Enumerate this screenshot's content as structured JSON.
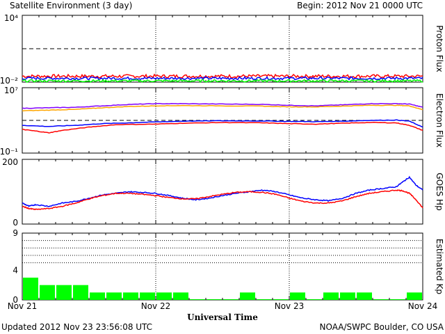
{
  "header": {
    "title": "Satellite Environment (3 day)",
    "begin": "Begin:  2012 Nov 21 0000 UTC"
  },
  "footer": {
    "updated": "Updated 2012 Nov 23 23:56:08 UTC",
    "credit": "NOAA/SWPC Boulder, CO USA"
  },
  "x_axis": {
    "label": "Universal Time",
    "ticks": [
      "Nov 21",
      "Nov 22",
      "Nov 23",
      "Nov 24"
    ]
  },
  "colors": {
    "red": "#ff0000",
    "blue": "#0000ff",
    "green": "#00ff00",
    "purple": "#8000ff",
    "orange": "#ffa500",
    "frame": "#000000",
    "kp_bar": "#00ff00"
  },
  "chart_data": [
    {
      "type": "line",
      "ylabel": "Proton Flux",
      "yscale": "log",
      "ylim": [
        0.01,
        10000
      ],
      "tick_labels": [
        "10⁴",
        "10⁻²"
      ],
      "threshold": 10,
      "x_range_days": [
        0,
        3
      ],
      "series": [
        {
          "color": "red",
          "level": 0.034,
          "noise": 0.15
        },
        {
          "color": "blue",
          "level": 0.022,
          "noise": 0.12
        },
        {
          "color": "green",
          "level": 0.013,
          "noise": 0.1
        }
      ]
    },
    {
      "type": "line",
      "ylabel": "Electron Flux",
      "yscale": "log",
      "ylim": [
        0.1,
        10000000
      ],
      "tick_labels": [
        "10⁷",
        "10⁻¹"
      ],
      "threshold": 1000,
      "x_range_days": [
        0,
        3
      ],
      "series": [
        {
          "color": "purple",
          "x": [
            0,
            0.2,
            0.4,
            0.6,
            0.8,
            1.0,
            1.2,
            1.5,
            1.8,
            2.0,
            2.2,
            2.4,
            2.6,
            2.8,
            2.9,
            3.0
          ],
          "y": [
            30000,
            35000,
            40000,
            60000,
            90000,
            110000,
            110000,
            100000,
            90000,
            70000,
            60000,
            80000,
            110000,
            110000,
            100000,
            40000
          ]
        },
        {
          "color": "orange",
          "x": [
            0,
            0.2,
            0.4,
            0.6,
            0.8,
            1.0,
            1.2,
            1.5,
            1.8,
            2.0,
            2.2,
            2.4,
            2.6,
            2.8,
            2.9,
            3.0
          ],
          "y": [
            15000,
            18000,
            22000,
            35000,
            50000,
            60000,
            65000,
            60000,
            55000,
            45000,
            45000,
            55000,
            70000,
            70000,
            60000,
            20000
          ]
        },
        {
          "color": "blue",
          "x": [
            0,
            0.2,
            0.4,
            0.6,
            0.8,
            1.0,
            1.2,
            1.5,
            1.8,
            2.0,
            2.2,
            2.4,
            2.6,
            2.8,
            2.9,
            3.0
          ],
          "y": [
            250,
            180,
            250,
            400,
            500,
            650,
            800,
            900,
            850,
            750,
            700,
            800,
            1000,
            1100,
            800,
            150
          ]
        },
        {
          "color": "red",
          "x": [
            0,
            0.1,
            0.2,
            0.3,
            0.5,
            0.7,
            1.0,
            1.2,
            1.5,
            1.8,
            2.0,
            2.2,
            2.4,
            2.6,
            2.8,
            2.9,
            3.0
          ],
          "y": [
            80,
            50,
            30,
            60,
            150,
            300,
            350,
            450,
            550,
            500,
            400,
            350,
            450,
            550,
            500,
            250,
            60
          ]
        }
      ]
    },
    {
      "type": "line",
      "ylabel": "GOES Hp",
      "ylim": [
        0,
        200
      ],
      "tick_labels": [
        "200",
        "0"
      ],
      "x_range_days": [
        0,
        3
      ],
      "series": [
        {
          "color": "blue",
          "x": [
            0,
            0.05,
            0.1,
            0.2,
            0.3,
            0.4,
            0.5,
            0.6,
            0.7,
            0.8,
            0.9,
            1.0,
            1.1,
            1.2,
            1.3,
            1.4,
            1.5,
            1.6,
            1.7,
            1.8,
            1.9,
            2.0,
            2.1,
            2.2,
            2.3,
            2.4,
            2.5,
            2.6,
            2.7,
            2.8,
            2.85,
            2.9,
            2.95,
            3.0
          ],
          "y": [
            65,
            55,
            60,
            55,
            65,
            70,
            80,
            90,
            95,
            100,
            98,
            95,
            88,
            80,
            75,
            80,
            88,
            95,
            100,
            105,
            100,
            90,
            80,
            75,
            72,
            80,
            95,
            105,
            110,
            115,
            130,
            145,
            120,
            105
          ]
        },
        {
          "color": "red",
          "x": [
            0,
            0.05,
            0.1,
            0.2,
            0.3,
            0.4,
            0.5,
            0.6,
            0.7,
            0.8,
            0.9,
            1.0,
            1.1,
            1.2,
            1.3,
            1.4,
            1.5,
            1.6,
            1.7,
            1.8,
            1.9,
            2.0,
            2.1,
            2.2,
            2.3,
            2.4,
            2.5,
            2.6,
            2.7,
            2.8,
            2.85,
            2.9,
            2.95,
            3.0
          ],
          "y": [
            55,
            48,
            45,
            48,
            55,
            65,
            78,
            88,
            95,
            95,
            92,
            88,
            82,
            78,
            78,
            85,
            92,
            98,
            100,
            98,
            92,
            80,
            70,
            65,
            65,
            72,
            85,
            95,
            100,
            105,
            103,
            95,
            75,
            50
          ]
        }
      ]
    },
    {
      "type": "bar",
      "ylabel": "Estimated Kp",
      "ylim": [
        0,
        9
      ],
      "tick_labels": [
        "9",
        "4",
        "0"
      ],
      "gridlines": [
        5,
        6,
        7,
        8
      ],
      "values": [
        3,
        2,
        2,
        2,
        1,
        1,
        1,
        1,
        1,
        1,
        0,
        0,
        0,
        1,
        0,
        0,
        1,
        0,
        1,
        1,
        1,
        0,
        0,
        1
      ]
    }
  ]
}
